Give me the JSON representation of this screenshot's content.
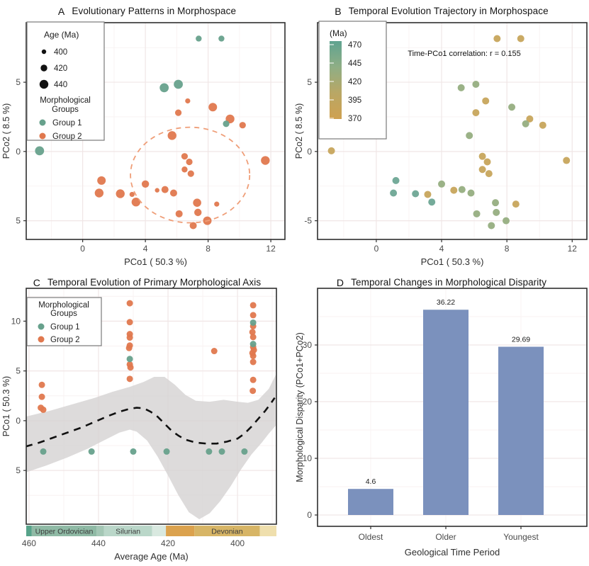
{
  "figure": {
    "background": "#ffffff"
  },
  "colors": {
    "group1": "#67a18c",
    "group2": "#e0784e",
    "ellipse": "#ef9e78",
    "age_teal": "#6ea795",
    "age_sage": "#96ae81",
    "age_gold": "#c7a55c",
    "bar_fill": "#7b91bd",
    "grid_major": "#f0e6e6",
    "grid_minor": "#f8f2f2",
    "frame": "#2f2f2f",
    "tick_text": "#4a4a4a",
    "axis_text": "#2e2e2e",
    "band": "#d5d2d2",
    "trend": "#111111"
  },
  "chart_data": [
    {
      "id": "A",
      "type": "scatter",
      "tag": "A",
      "title": "Evolutionary Patterns in Morphospace",
      "xlabel": "PCo1 ( 50.3 %)",
      "ylabel": "PCo2 ( 8.5 %)",
      "xlim": [
        -3.6,
        12.9
      ],
      "ylim": [
        -6.35,
        9.3
      ],
      "xticks": [
        {
          "v": 0,
          "label": "0"
        },
        {
          "v": 4,
          "label": "4"
        },
        {
          "v": 8,
          "label": "8"
        },
        {
          "v": 12,
          "label": "12"
        }
      ],
      "yticks": [
        {
          "v": 5,
          "label": "5"
        },
        {
          "v": 0,
          "label": "0"
        },
        {
          "v": -5,
          "label": "5"
        }
      ],
      "xminor": [
        -2,
        2,
        6,
        10
      ],
      "yminor": [
        7.5,
        2.5,
        -2.5
      ],
      "legend_size": {
        "title": "Age (Ma)",
        "entries": [
          {
            "label": "400",
            "r": 3.2
          },
          {
            "label": "420",
            "r": 4.7
          },
          {
            "label": "440",
            "r": 6.2
          }
        ]
      },
      "legend_groups": {
        "title_lines": [
          "Morphological",
          "Groups"
        ],
        "entries": [
          {
            "label": "Group 1",
            "color_key": "group1"
          },
          {
            "label": "Group 2",
            "color_key": "group2"
          }
        ]
      },
      "ellipse": {
        "cx": 6.85,
        "cy": -1.7,
        "rx": 3.8,
        "ry": 3.45
      },
      "legend_position": "top-left-inside",
      "points": [
        {
          "x": 7.4,
          "y": 8.15,
          "r": 4.2,
          "g": 1,
          "a": "gold"
        },
        {
          "x": 8.85,
          "y": 8.15,
          "r": 4.2,
          "g": 1,
          "a": "gold"
        },
        {
          "x": 5.2,
          "y": 4.6,
          "r": 6.4,
          "g": 1,
          "a": "sage"
        },
        {
          "x": 6.1,
          "y": 4.85,
          "r": 6.4,
          "g": 1,
          "a": "sage"
        },
        {
          "x": 6.7,
          "y": 3.65,
          "r": 3.6,
          "g": 2,
          "a": "gold"
        },
        {
          "x": 8.3,
          "y": 3.2,
          "r": 6.0,
          "g": 2,
          "a": "sage"
        },
        {
          "x": 6.1,
          "y": 2.8,
          "r": 4.6,
          "g": 2,
          "a": "gold"
        },
        {
          "x": 9.4,
          "y": 2.35,
          "r": 6.2,
          "g": 2,
          "a": "gold"
        },
        {
          "x": 9.15,
          "y": 2.0,
          "r": 4.6,
          "g": 1,
          "a": "sage"
        },
        {
          "x": 10.2,
          "y": 1.9,
          "r": 4.6,
          "g": 2,
          "a": "gold"
        },
        {
          "x": 5.7,
          "y": 1.15,
          "r": 6.2,
          "g": 2,
          "a": "sage"
        },
        {
          "x": -2.75,
          "y": 0.05,
          "r": 6.4,
          "g": 1,
          "a": "gold"
        },
        {
          "x": 6.5,
          "y": -0.35,
          "r": 4.6,
          "g": 2,
          "a": "gold"
        },
        {
          "x": 6.8,
          "y": -0.75,
          "r": 4.6,
          "g": 2,
          "a": "gold"
        },
        {
          "x": 11.65,
          "y": -0.65,
          "r": 6.2,
          "g": 2,
          "a": "gold"
        },
        {
          "x": 6.5,
          "y": -1.3,
          "r": 4.2,
          "g": 2,
          "a": "gold"
        },
        {
          "x": 6.9,
          "y": -1.6,
          "r": 4.6,
          "g": 2,
          "a": "gold"
        },
        {
          "x": 1.2,
          "y": -2.1,
          "r": 6.0,
          "g": 2,
          "a": "teal"
        },
        {
          "x": 4.0,
          "y": -2.35,
          "r": 5.2,
          "g": 2,
          "a": "sage"
        },
        {
          "x": 1.05,
          "y": -3.0,
          "r": 6.2,
          "g": 2,
          "a": "teal"
        },
        {
          "x": 2.4,
          "y": -3.05,
          "r": 6.2,
          "g": 2,
          "a": "teal"
        },
        {
          "x": 3.15,
          "y": -3.1,
          "r": 3.6,
          "g": 2,
          "a": "gold"
        },
        {
          "x": 4.75,
          "y": -2.8,
          "r": 3.2,
          "g": 2,
          "a": "gold"
        },
        {
          "x": 5.25,
          "y": -2.75,
          "r": 5.0,
          "g": 2,
          "a": "sage"
        },
        {
          "x": 5.8,
          "y": -3.0,
          "r": 5.0,
          "g": 2,
          "a": "sage"
        },
        {
          "x": 3.4,
          "y": -3.65,
          "r": 6.2,
          "g": 2,
          "a": "teal"
        },
        {
          "x": 7.3,
          "y": -3.7,
          "r": 5.8,
          "g": 2,
          "a": "sage"
        },
        {
          "x": 8.55,
          "y": -3.8,
          "r": 3.6,
          "g": 2,
          "a": "gold"
        },
        {
          "x": 6.15,
          "y": -4.5,
          "r": 5.0,
          "g": 2,
          "a": "sage"
        },
        {
          "x": 7.35,
          "y": -4.4,
          "r": 5.2,
          "g": 2,
          "a": "sage"
        },
        {
          "x": 7.95,
          "y": -5.0,
          "r": 6.0,
          "g": 2,
          "a": "sage"
        },
        {
          "x": 7.05,
          "y": -5.35,
          "r": 5.0,
          "g": 2,
          "a": "sage"
        }
      ]
    },
    {
      "id": "B",
      "type": "scatter",
      "tag": "B",
      "title": "Temporal Evolution Trajectory in Morphospace",
      "xlabel": "PCo1 ( 50.3 %)",
      "ylabel": "PCo2 ( 8.5 %)",
      "xlim": [
        -3.6,
        12.9
      ],
      "ylim": [
        -6.35,
        9.3
      ],
      "xticks": [
        {
          "v": 0,
          "label": "0"
        },
        {
          "v": 4,
          "label": "4"
        },
        {
          "v": 8,
          "label": "8"
        },
        {
          "v": 12,
          "label": "12"
        }
      ],
      "yticks": [
        {
          "v": 5,
          "label": "5"
        },
        {
          "v": 0,
          "label": "0"
        },
        {
          "v": -5,
          "label": "-5"
        }
      ],
      "xminor": [
        -2,
        2,
        6,
        10
      ],
      "yminor": [
        7.5,
        2.5,
        -2.5
      ],
      "annotation": "Time-PCo1 correlation: r = 0.155",
      "colorbar": {
        "title": "(Ma)",
        "ticks": [
          "470",
          "445",
          "420",
          "395",
          "370"
        ],
        "stops": [
          "#5fa390",
          "#8fae85",
          "#b9a765",
          "#cfa150"
        ]
      },
      "point_radius": 5,
      "points_from": "A",
      "legend_position": "top-left-inside"
    },
    {
      "id": "C",
      "type": "scatter_smooth",
      "tag": "C",
      "title": "Temporal Evolution of Primary Morphological Axis",
      "xlabel": "Average Age (Ma)",
      "ylabel": "PCo1 ( 50.3 %)",
      "x_reversed": true,
      "xlim": [
        460.8,
        388.8
      ],
      "ylim": [
        -10.4,
        13.3
      ],
      "xticks": [
        {
          "v": 460,
          "label": "460"
        },
        {
          "v": 440,
          "label": "440"
        },
        {
          "v": 420,
          "label": "420"
        },
        {
          "v": 400,
          "label": "400"
        }
      ],
      "yticks": [
        {
          "v": 10,
          "label": "10"
        },
        {
          "v": 5,
          "label": "5"
        },
        {
          "v": 0,
          "label": "0"
        },
        {
          "v": -5,
          "label": "5"
        }
      ],
      "xminor": [
        450,
        430,
        410,
        390
      ],
      "yminor": [
        12.5,
        7.5,
        2.5,
        -2.5,
        -7.5
      ],
      "legend_groups": {
        "title_lines": [
          "Morphological",
          "Groups"
        ],
        "entries": [
          {
            "label": "Group 1",
            "color_key": "group1"
          },
          {
            "label": "Group 2",
            "color_key": "group2"
          }
        ]
      },
      "legend_position": "top-left-inside",
      "points": [
        {
          "age": 456.3,
          "y": 3.6,
          "g": 2
        },
        {
          "age": 456.3,
          "y": 2.4,
          "g": 2
        },
        {
          "age": 456.6,
          "y": 1.3,
          "g": 2
        },
        {
          "age": 455.9,
          "y": 1.1,
          "g": 2
        },
        {
          "age": 431.0,
          "y": 11.8,
          "g": 2
        },
        {
          "age": 431.0,
          "y": 9.9,
          "g": 2
        },
        {
          "age": 431.0,
          "y": 8.7,
          "g": 2
        },
        {
          "age": 431.0,
          "y": 8.35,
          "g": 2
        },
        {
          "age": 431.0,
          "y": 7.55,
          "g": 2
        },
        {
          "age": 431.2,
          "y": 7.3,
          "g": 2
        },
        {
          "age": 431.0,
          "y": 5.65,
          "g": 2
        },
        {
          "age": 430.8,
          "y": 5.35,
          "g": 2
        },
        {
          "age": 431.0,
          "y": 4.2,
          "g": 2
        },
        {
          "age": 406.7,
          "y": 7.0,
          "g": 2
        },
        {
          "age": 395.5,
          "y": 11.6,
          "g": 2
        },
        {
          "age": 395.5,
          "y": 10.6,
          "g": 2
        },
        {
          "age": 395.5,
          "y": 9.5,
          "g": 2
        },
        {
          "age": 395.7,
          "y": 8.9,
          "g": 2
        },
        {
          "age": 395.5,
          "y": 8.4,
          "g": 2
        },
        {
          "age": 395.5,
          "y": 7.4,
          "g": 2
        },
        {
          "age": 395.3,
          "y": 7.1,
          "g": 2
        },
        {
          "age": 395.7,
          "y": 6.8,
          "g": 2
        },
        {
          "age": 395.5,
          "y": 6.5,
          "g": 2
        },
        {
          "age": 395.5,
          "y": 5.9,
          "g": 2
        },
        {
          "age": 395.5,
          "y": 4.1,
          "g": 2
        },
        {
          "age": 395.6,
          "y": 3.0,
          "g": 2
        },
        {
          "age": 431.0,
          "y": 6.2,
          "g": 1
        },
        {
          "age": 395.5,
          "y": 9.85,
          "g": 1
        },
        {
          "age": 395.5,
          "y": 7.7,
          "g": 1
        },
        {
          "age": 455.9,
          "y": -3.1,
          "g": 1
        },
        {
          "age": 442.0,
          "y": -3.1,
          "g": 1
        },
        {
          "age": 430.0,
          "y": -3.1,
          "g": 1
        },
        {
          "age": 420.4,
          "y": -3.1,
          "g": 1
        },
        {
          "age": 408.2,
          "y": -3.1,
          "g": 1
        },
        {
          "age": 404.5,
          "y": -3.1,
          "g": 1
        },
        {
          "age": 398.0,
          "y": -3.1,
          "g": 1
        }
      ],
      "trend": [
        [
          461,
          -2.6
        ],
        [
          457,
          -2.2
        ],
        [
          453,
          -1.7
        ],
        [
          449,
          -1.2
        ],
        [
          445,
          -0.7
        ],
        [
          441,
          -0.1
        ],
        [
          437,
          0.5
        ],
        [
          434,
          0.9
        ],
        [
          431,
          1.2
        ],
        [
          429,
          1.3
        ],
        [
          427,
          1.25
        ],
        [
          425,
          0.9
        ],
        [
          423,
          0.4
        ],
        [
          421,
          -0.3
        ],
        [
          419,
          -1.0
        ],
        [
          417,
          -1.5
        ],
        [
          415,
          -1.9
        ],
        [
          412,
          -2.2
        ],
        [
          409,
          -2.3
        ],
        [
          406,
          -2.3
        ],
        [
          403,
          -2.1
        ],
        [
          400,
          -1.8
        ],
        [
          398,
          -1.3
        ],
        [
          396,
          -0.6
        ],
        [
          394,
          0.2
        ],
        [
          392,
          1.0
        ],
        [
          390.5,
          1.7
        ],
        [
          389.3,
          2.3
        ]
      ],
      "band_upper": [
        [
          461,
          0.4
        ],
        [
          454,
          1.0
        ],
        [
          447,
          1.7
        ],
        [
          441,
          2.3
        ],
        [
          436,
          2.9
        ],
        [
          431,
          3.4
        ],
        [
          427,
          3.9
        ],
        [
          424,
          4.4
        ],
        [
          421,
          4.4
        ],
        [
          418,
          3.6
        ],
        [
          415,
          2.6
        ],
        [
          412,
          2.0
        ],
        [
          408,
          1.9
        ],
        [
          404,
          2.1
        ],
        [
          400,
          1.9
        ],
        [
          397,
          1.8
        ],
        [
          394,
          2.1
        ],
        [
          391,
          3.2
        ],
        [
          389,
          4.6
        ]
      ],
      "band_lower": [
        [
          461,
          -5.2
        ],
        [
          455,
          -4.5
        ],
        [
          449,
          -3.7
        ],
        [
          443,
          -2.8
        ],
        [
          438,
          -1.9
        ],
        [
          434,
          -1.2
        ],
        [
          431,
          -0.9
        ],
        [
          429,
          -1.1
        ],
        [
          426,
          -2.0
        ],
        [
          423,
          -3.6
        ],
        [
          420,
          -5.5
        ],
        [
          417,
          -7.5
        ],
        [
          414,
          -9.2
        ],
        [
          411,
          -9.9
        ],
        [
          408,
          -9.3
        ],
        [
          405,
          -8.1
        ],
        [
          402,
          -6.6
        ],
        [
          399,
          -4.9
        ],
        [
          396,
          -3.4
        ],
        [
          393,
          -2.2
        ],
        [
          391,
          -1.3
        ],
        [
          389,
          -0.5
        ]
      ],
      "geo_bands": [
        {
          "from": 460.8,
          "to": 459.2,
          "color": "#57a38a",
          "label": ""
        },
        {
          "from": 459.2,
          "to": 440.6,
          "color": "#8fbaa5",
          "label": "Upper Ordovician"
        },
        {
          "from": 440.6,
          "to": 438.4,
          "color": "#a4c7b5",
          "label": ""
        },
        {
          "from": 438.4,
          "to": 424.6,
          "color": "#bad7c9",
          "label": "Silurian"
        },
        {
          "from": 424.6,
          "to": 420.6,
          "color": "#d9e9e0",
          "label": ""
        },
        {
          "from": 420.6,
          "to": 412.4,
          "color": "#dba24e",
          "label": ""
        },
        {
          "from": 412.4,
          "to": 393.6,
          "color": "#d7b566",
          "label": "Devonian"
        },
        {
          "from": 393.6,
          "to": 388.8,
          "color": "#efdfad",
          "label": ""
        }
      ]
    },
    {
      "id": "D",
      "type": "bar",
      "tag": "D",
      "title": "Temporal Changes in Morphological Disparity",
      "xlabel": "Geological Time Period",
      "ylabel": "Morphological Disparity (PCo1+PCo2)",
      "categories": [
        "Oldest",
        "Older",
        "Youngest"
      ],
      "values": [
        4.6,
        36.22,
        29.69
      ],
      "value_labels": [
        "4.6",
        "36.22",
        "29.69"
      ],
      "ylim": [
        0,
        40
      ],
      "yticks": [
        {
          "v": 0,
          "label": "0"
        },
        {
          "v": 10,
          "label": "10"
        },
        {
          "v": 20,
          "label": "20"
        },
        {
          "v": 30,
          "label": "30"
        }
      ],
      "yminor": [
        5,
        15,
        25,
        35
      ],
      "grid": true,
      "legend_position": "none"
    }
  ]
}
